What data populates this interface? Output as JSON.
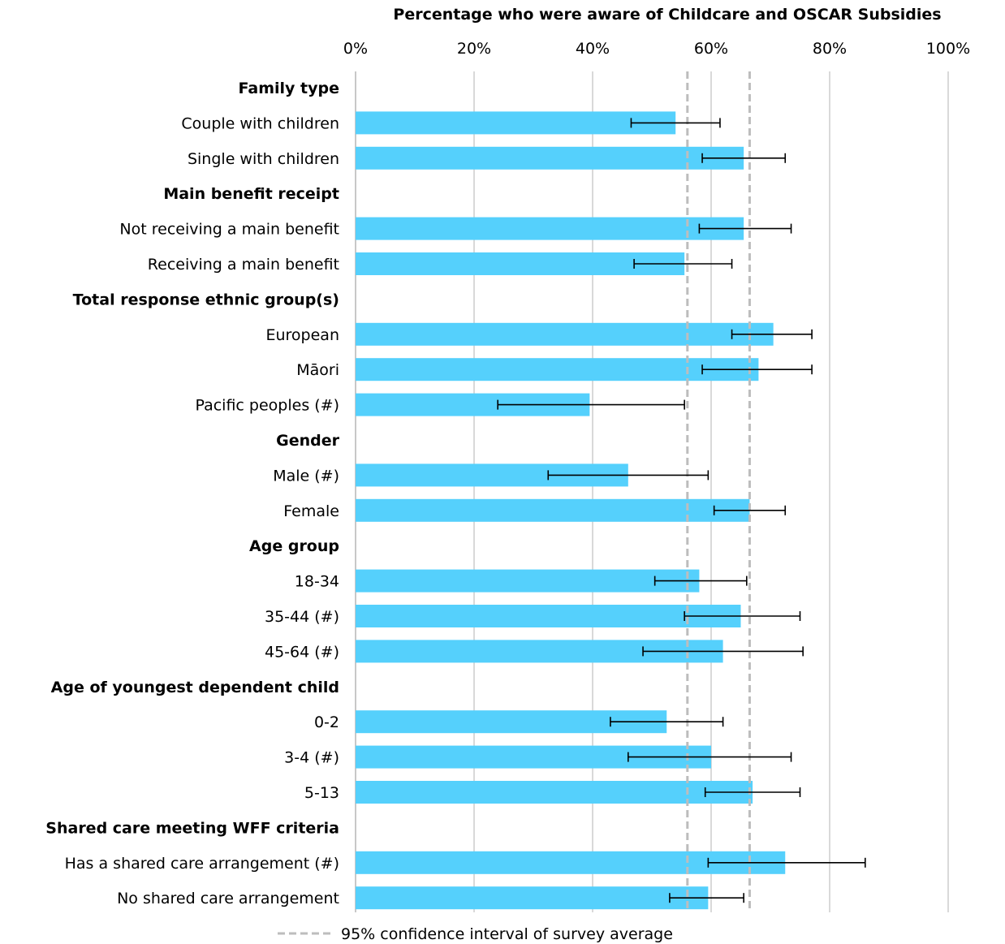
{
  "chart_data": {
    "type": "bar",
    "orientation": "horizontal",
    "title": "Percentage who were aware of Childcare and OSCAR Subsidies",
    "xlim": [
      0,
      100
    ],
    "x_ticks": [
      "0%",
      "20%",
      "40%",
      "60%",
      "80%",
      "100%"
    ],
    "x_tick_values": [
      0,
      20,
      40,
      60,
      80,
      100
    ],
    "grid": true,
    "bar_color": "#55d0fc",
    "reference_lines": {
      "label": "95% confidence interval of survey average",
      "values": [
        56,
        66.5
      ],
      "color": "#bdbdbd",
      "style": "dashed"
    },
    "legend_position": "bottom",
    "rows": [
      {
        "kind": "header",
        "label": "Family type"
      },
      {
        "kind": "bar",
        "label": "Couple with children",
        "value": 54,
        "ci": [
          46.5,
          61.5
        ]
      },
      {
        "kind": "bar",
        "label": "Single with children",
        "value": 65.5,
        "ci": [
          58.5,
          72.5
        ]
      },
      {
        "kind": "header",
        "label": "Main benefit receipt"
      },
      {
        "kind": "bar",
        "label": "Not receiving a main benefit",
        "value": 65.5,
        "ci": [
          58,
          73.5
        ]
      },
      {
        "kind": "bar",
        "label": "Receiving a main benefit",
        "value": 55.5,
        "ci": [
          47,
          63.5
        ]
      },
      {
        "kind": "header",
        "label": "Total response ethnic group(s)"
      },
      {
        "kind": "bar",
        "label": "European",
        "value": 70.5,
        "ci": [
          63.5,
          77
        ]
      },
      {
        "kind": "bar",
        "label": "Māori",
        "value": 68,
        "ci": [
          58.5,
          77
        ]
      },
      {
        "kind": "bar",
        "label": "Pacific peoples (#)",
        "value": 39.5,
        "ci": [
          24,
          55.5
        ]
      },
      {
        "kind": "header",
        "label": "Gender"
      },
      {
        "kind": "bar",
        "label": "Male (#)",
        "value": 46,
        "ci": [
          32.5,
          59.5
        ]
      },
      {
        "kind": "bar",
        "label": "Female",
        "value": 66.5,
        "ci": [
          60.5,
          72.5
        ]
      },
      {
        "kind": "header",
        "label": "Age group"
      },
      {
        "kind": "bar",
        "label": "18-34",
        "value": 58,
        "ci": [
          50.5,
          66
        ]
      },
      {
        "kind": "bar",
        "label": "35-44 (#)",
        "value": 65,
        "ci": [
          55.5,
          75
        ]
      },
      {
        "kind": "bar",
        "label": "45-64 (#)",
        "value": 62,
        "ci": [
          48.5,
          75.5
        ]
      },
      {
        "kind": "header",
        "label": "Age of youngest dependent child"
      },
      {
        "kind": "bar",
        "label": "0-2",
        "value": 52.5,
        "ci": [
          43,
          62
        ]
      },
      {
        "kind": "bar",
        "label": "3-4 (#)",
        "value": 60,
        "ci": [
          46,
          73.5
        ]
      },
      {
        "kind": "bar",
        "label": "5-13",
        "value": 67,
        "ci": [
          59,
          75
        ]
      },
      {
        "kind": "header",
        "label": "Shared care meeting WFF criteria"
      },
      {
        "kind": "bar",
        "label": "Has a shared care arrangement (#)",
        "value": 72.5,
        "ci": [
          59.5,
          86
        ]
      },
      {
        "kind": "bar",
        "label": "No shared care arrangement",
        "value": 59.5,
        "ci": [
          53,
          65.5
        ]
      }
    ]
  }
}
